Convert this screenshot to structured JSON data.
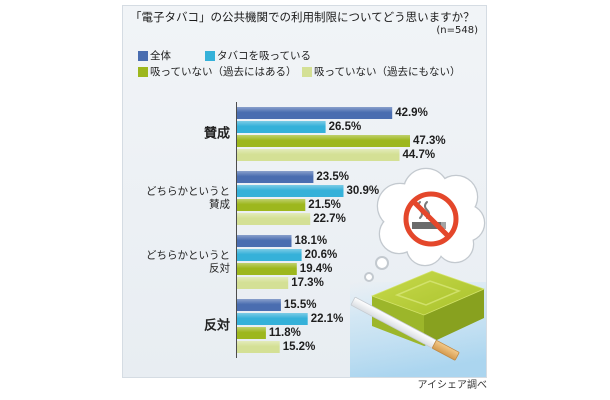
{
  "chart_data": {
    "type": "bar",
    "orientation": "horizontal",
    "title": "「電子タバコ」の公共機関での利用制限についてどう思いますか？",
    "note": "(n=548)",
    "source": "アイシェア調べ",
    "categories": [
      "賛成",
      "どちらかというと\n賛成",
      "どちらかというと\n反対",
      "反対"
    ],
    "value_suffix": "%",
    "series": [
      {
        "name": "全体",
        "color": "#4a6db0",
        "values": [
          42.9,
          23.5,
          18.1,
          15.5
        ]
      },
      {
        "name": "タバコを吸っている",
        "color": "#35b1d9",
        "values": [
          26.5,
          30.9,
          20.6,
          22.1
        ]
      },
      {
        "name": "吸っていない（過去にはある）",
        "color": "#9db71d",
        "values": [
          47.3,
          21.5,
          19.4,
          11.8
        ]
      },
      {
        "name": "吸っていない（過去にもない）",
        "color": "#d4e095",
        "values": [
          44.7,
          22.7,
          17.3,
          15.2
        ]
      }
    ],
    "legend": "top-left",
    "grid": false
  },
  "illustration": {
    "icons": [
      "thought-bubble-icon",
      "no-smoking-icon",
      "cigarette-case-icon",
      "cigarette-icon"
    ]
  }
}
